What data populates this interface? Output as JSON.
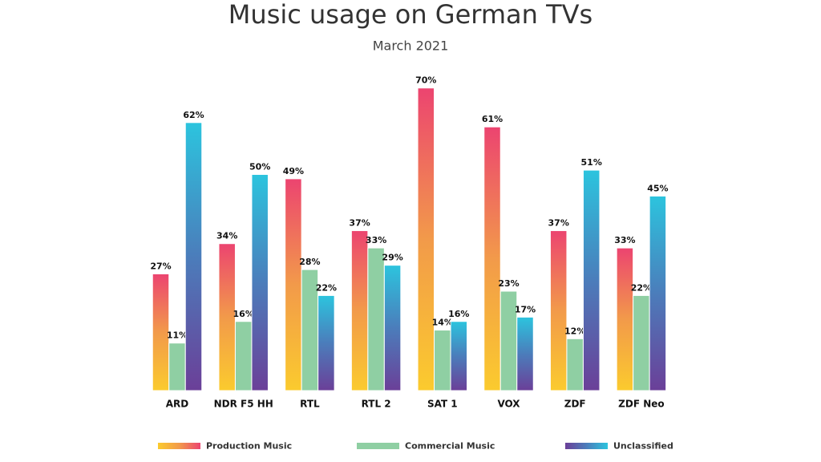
{
  "chart_data": {
    "type": "bar",
    "title": "Music usage on German TVs",
    "subtitle": "March 2021",
    "categories": [
      "ARD",
      "NDR F5 HH",
      "RTL",
      "RTL 2",
      "SAT 1",
      "VOX",
      "ZDF",
      "ZDF Neo"
    ],
    "series": [
      {
        "name": "Production Music",
        "color": "#ec4470",
        "gradient": [
          "#ec4470",
          "#f29a4a",
          "#fbcb2e"
        ],
        "values": [
          27,
          34,
          49,
          37,
          70,
          61,
          37,
          33
        ],
        "value_labels": [
          "27%",
          "34%",
          "49%",
          "37%",
          "70%",
          "61%",
          "37%",
          "33%"
        ]
      },
      {
        "name": "Commercial Music",
        "color": "#8fcfa3",
        "gradient": [
          "#8fcfa3",
          "#8fcfa3"
        ],
        "values": [
          11,
          16,
          28,
          33,
          14,
          23,
          12,
          22
        ],
        "value_labels": [
          "11%",
          "16%",
          "28%",
          "33%",
          "14%",
          "23%",
          "12%",
          "22%"
        ]
      },
      {
        "name": "Unclassified",
        "color": "#6b449a",
        "gradient": [
          "#2cc4de",
          "#4b7dbb",
          "#6b3f98"
        ],
        "values": [
          62,
          50,
          22,
          29,
          16,
          17,
          51,
          45
        ],
        "value_labels": [
          "62%",
          "50%",
          "22%",
          "29%",
          "16%",
          "17%",
          "51%",
          "45%"
        ]
      }
    ]
  }
}
